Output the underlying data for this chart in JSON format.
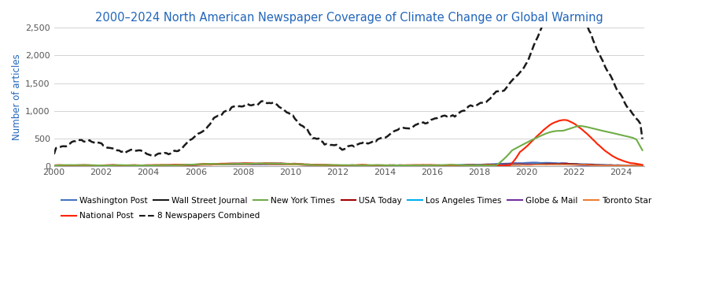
{
  "title": "2000–2024 North American Newspaper Coverage of Climate Change or Global Warming",
  "ylabel": "Number of articles",
  "title_color": "#2266bb",
  "ylabel_color": "#2266bb",
  "background_color": "#ffffff",
  "grid_color": "#cccccc",
  "ylim": [
    0,
    2500
  ],
  "yticks": [
    0,
    500,
    1000,
    1500,
    2000,
    2500
  ],
  "xlim_start": 2000,
  "xlim_end": 2025,
  "xticks": [
    2000,
    2002,
    2004,
    2006,
    2008,
    2010,
    2012,
    2014,
    2016,
    2018,
    2020,
    2022,
    2024
  ],
  "series": {
    "Washington Post": {
      "color": "#4472c4",
      "lw": 1.2,
      "ls": "-",
      "zorder": 3
    },
    "Wall Street Journal": {
      "color": "#1a1a1a",
      "lw": 1.2,
      "ls": "-",
      "zorder": 3
    },
    "New York Times": {
      "color": "#70ad47",
      "lw": 1.5,
      "ls": "-",
      "zorder": 5
    },
    "USA Today": {
      "color": "#a00000",
      "lw": 1.2,
      "ls": "-",
      "zorder": 3
    },
    "Los Angeles Times": {
      "color": "#00b0f0",
      "lw": 1.2,
      "ls": "-",
      "zorder": 3
    },
    "Globe & Mail": {
      "color": "#7030a0",
      "lw": 1.2,
      "ls": "-",
      "zorder": 3
    },
    "Toronto Star": {
      "color": "#ed7d31",
      "lw": 1.2,
      "ls": "-",
      "zorder": 3
    },
    "National Post": {
      "color": "#ff2200",
      "lw": 1.5,
      "ls": "-",
      "zorder": 4
    },
    "8 Newspapers Combined": {
      "color": "#1a1a1a",
      "lw": 1.8,
      "ls": "--",
      "zorder": 6
    }
  },
  "legend_row1": [
    "Washington Post",
    "Wall Street Journal",
    "New York Times",
    "USA Today",
    "Los Angeles Times",
    "Globe & Mail",
    "Toronto Star"
  ],
  "legend_row2": [
    "National Post",
    "8 Newspapers Combined"
  ]
}
